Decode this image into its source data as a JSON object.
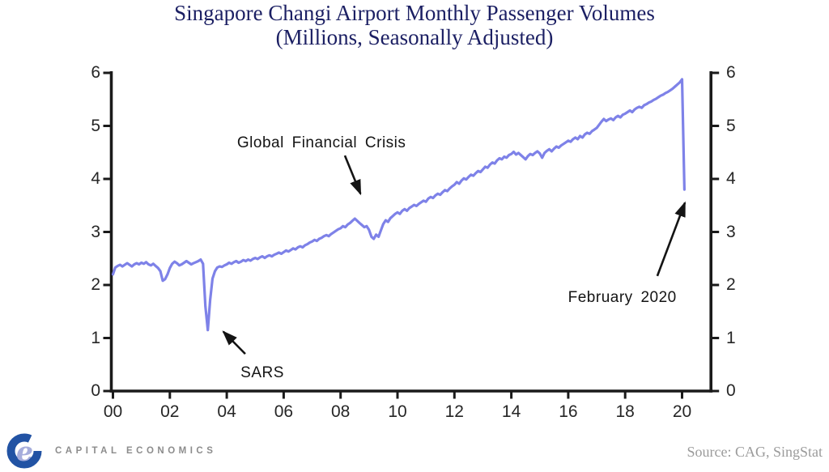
{
  "title": {
    "line1": "Singapore Changi Airport Monthly Passenger Volumes",
    "line2": "(Millions, Seasonally Adjusted)"
  },
  "chart_data": {
    "type": "line",
    "title": "Singapore Changi Airport Monthly Passenger Volumes (Millions, Seasonally Adjusted)",
    "series_name": "Passenger volumes (millions, seasonally adjusted)",
    "frequency": "monthly",
    "x_start": "2000-01",
    "x_end": "2020-02",
    "ylim": [
      0,
      6
    ],
    "grid": false,
    "y_tick_labels": [
      "0",
      "1",
      "2",
      "3",
      "4",
      "5",
      "6"
    ],
    "x_tick_labels": [
      "00",
      "02",
      "04",
      "06",
      "08",
      "10",
      "12",
      "14",
      "16",
      "18",
      "20"
    ],
    "line_color": "#7e82e8",
    "values": [
      2.2,
      2.33,
      2.36,
      2.38,
      2.35,
      2.38,
      2.41,
      2.38,
      2.35,
      2.39,
      2.41,
      2.39,
      2.42,
      2.4,
      2.43,
      2.39,
      2.37,
      2.4,
      2.36,
      2.32,
      2.26,
      2.08,
      2.11,
      2.2,
      2.32,
      2.4,
      2.44,
      2.41,
      2.37,
      2.39,
      2.42,
      2.45,
      2.42,
      2.39,
      2.41,
      2.43,
      2.45,
      2.48,
      2.4,
      1.6,
      1.15,
      1.72,
      2.12,
      2.26,
      2.33,
      2.35,
      2.34,
      2.37,
      2.39,
      2.42,
      2.4,
      2.43,
      2.45,
      2.42,
      2.44,
      2.47,
      2.45,
      2.48,
      2.46,
      2.49,
      2.51,
      2.49,
      2.52,
      2.54,
      2.51,
      2.54,
      2.56,
      2.54,
      2.57,
      2.59,
      2.61,
      2.59,
      2.62,
      2.65,
      2.63,
      2.66,
      2.69,
      2.67,
      2.71,
      2.73,
      2.71,
      2.75,
      2.77,
      2.8,
      2.82,
      2.85,
      2.83,
      2.87,
      2.89,
      2.92,
      2.94,
      2.92,
      2.96,
      2.99,
      3.02,
      3.05,
      3.07,
      3.11,
      3.09,
      3.14,
      3.17,
      3.21,
      3.25,
      3.21,
      3.17,
      3.13,
      3.09,
      3.11,
      3.04,
      2.91,
      2.87,
      2.95,
      2.91,
      3.03,
      3.15,
      3.22,
      3.19,
      3.26,
      3.3,
      3.34,
      3.37,
      3.34,
      3.4,
      3.43,
      3.4,
      3.45,
      3.48,
      3.51,
      3.49,
      3.53,
      3.56,
      3.59,
      3.57,
      3.63,
      3.66,
      3.64,
      3.69,
      3.72,
      3.7,
      3.75,
      3.79,
      3.77,
      3.82,
      3.86,
      3.89,
      3.94,
      3.91,
      3.97,
      4.01,
      3.99,
      4.04,
      4.08,
      4.06,
      4.11,
      4.15,
      4.13,
      4.18,
      4.23,
      4.21,
      4.27,
      4.31,
      4.29,
      4.35,
      4.39,
      4.37,
      4.42,
      4.4,
      4.45,
      4.47,
      4.51,
      4.46,
      4.49,
      4.45,
      4.41,
      4.37,
      4.43,
      4.47,
      4.45,
      4.49,
      4.52,
      4.48,
      4.4,
      4.49,
      4.53,
      4.56,
      4.52,
      4.57,
      4.61,
      4.59,
      4.63,
      4.66,
      4.69,
      4.72,
      4.7,
      4.75,
      4.78,
      4.75,
      4.81,
      4.78,
      4.84,
      4.87,
      4.85,
      4.9,
      4.93,
      4.96,
      5.02,
      5.08,
      5.13,
      5.09,
      5.12,
      5.14,
      5.11,
      5.16,
      5.19,
      5.16,
      5.21,
      5.23,
      5.26,
      5.29,
      5.26,
      5.31,
      5.34,
      5.36,
      5.34,
      5.39,
      5.41,
      5.44,
      5.46,
      5.49,
      5.51,
      5.54,
      5.57,
      5.59,
      5.62,
      5.64,
      5.67,
      5.7,
      5.74,
      5.78,
      5.82,
      5.88,
      3.8
    ],
    "annotations": [
      {
        "text": "Global Financial Crisis",
        "label_x": 7.33,
        "label_y": 4.67,
        "arrow_from_x": 8.15,
        "arrow_from_y": 4.44,
        "arrow_to_x": 8.7,
        "arrow_to_y": 3.72
      },
      {
        "text": "SARS",
        "label_x": 5.25,
        "label_y": 0.33,
        "arrow_from_x": 4.65,
        "arrow_from_y": 0.7,
        "arrow_to_x": 3.88,
        "arrow_to_y": 1.12
      },
      {
        "text": "February 2020",
        "label_x": 17.9,
        "label_y": 1.76,
        "arrow_from_x": 19.13,
        "arrow_from_y": 2.17,
        "arrow_to_x": 20.1,
        "arrow_to_y": 3.55
      }
    ]
  },
  "footer": {
    "logo_text": "CAPITAL ECONOMICS",
    "logo_e": "e",
    "source": "Source: CAG, SingStat"
  },
  "colors": {
    "title": "#1b1f63",
    "line": "#7e82e8",
    "axis": "#1a1a1a",
    "logo_blue": "#2253a4",
    "logo_e": "#a6addc",
    "logo_text": "#8c8c8c",
    "source_text": "#9b9b9b"
  }
}
